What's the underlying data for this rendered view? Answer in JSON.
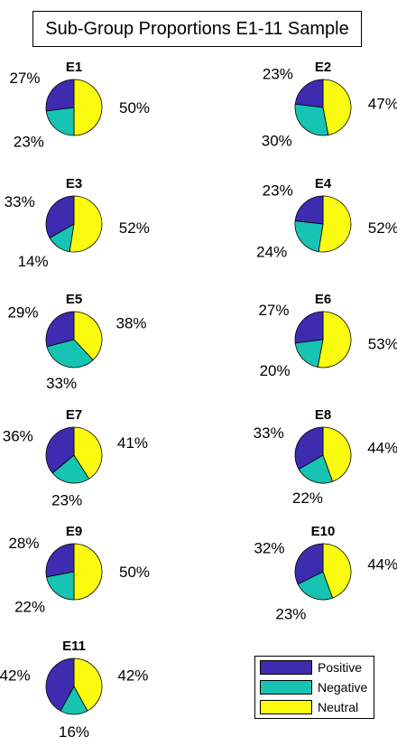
{
  "title": "Sub-Group Proportions E1-11 Sample",
  "chart_data": {
    "type": "pie",
    "title": "Sub-Group Proportions E1-11 Sample",
    "series_names": [
      "Positive",
      "Negative",
      "Neutral"
    ],
    "colors": {
      "Positive": "#3d2bb0",
      "Negative": "#17c3b2",
      "Neutral": "#fbfb10"
    },
    "legend": {
      "placement": "bottom-right",
      "entries": [
        "Positive",
        "Negative",
        "Neutral"
      ]
    },
    "pies": [
      {
        "name": "E1",
        "values": {
          "Positive": 27,
          "Negative": 23,
          "Neutral": 50
        },
        "labels": {
          "Positive": "27%",
          "Negative": "23%",
          "Neutral": "50%"
        }
      },
      {
        "name": "E2",
        "values": {
          "Positive": 23,
          "Negative": 30,
          "Neutral": 47
        },
        "labels": {
          "Positive": "23%",
          "Negative": "30%",
          "Neutral": "47%"
        }
      },
      {
        "name": "E3",
        "values": {
          "Positive": 33,
          "Negative": 14,
          "Neutral": 52
        },
        "labels": {
          "Positive": "33%",
          "Negative": "14%",
          "Neutral": "52%"
        }
      },
      {
        "name": "E4",
        "values": {
          "Positive": 23,
          "Negative": 24,
          "Neutral": 52
        },
        "labels": {
          "Positive": "23%",
          "Negative": "24%",
          "Neutral": "52%"
        }
      },
      {
        "name": "E5",
        "values": {
          "Positive": 29,
          "Negative": 33,
          "Neutral": 38
        },
        "labels": {
          "Positive": "29%",
          "Negative": "33%",
          "Neutral": "38%"
        }
      },
      {
        "name": "E6",
        "values": {
          "Positive": 27,
          "Negative": 20,
          "Neutral": 53
        },
        "labels": {
          "Positive": "27%",
          "Negative": "20%",
          "Neutral": "53%"
        }
      },
      {
        "name": "E7",
        "values": {
          "Positive": 36,
          "Negative": 23,
          "Neutral": 41
        },
        "labels": {
          "Positive": "36%",
          "Negative": "23%",
          "Neutral": "41%"
        }
      },
      {
        "name": "E8",
        "values": {
          "Positive": 33,
          "Negative": 22,
          "Neutral": 44
        },
        "labels": {
          "Positive": "33%",
          "Negative": "22%",
          "Neutral": "44%"
        }
      },
      {
        "name": "E9",
        "values": {
          "Positive": 28,
          "Negative": 22,
          "Neutral": 50
        },
        "labels": {
          "Positive": "28%",
          "Negative": "22%",
          "Neutral": "50%"
        }
      },
      {
        "name": "E10",
        "values": {
          "Positive": 32,
          "Negative": 23,
          "Neutral": 44
        },
        "labels": {
          "Positive": "32%",
          "Negative": "23%",
          "Neutral": "44%"
        }
      },
      {
        "name": "E11",
        "values": {
          "Positive": 42,
          "Negative": 16,
          "Neutral": 42
        },
        "labels": {
          "Positive": "42%",
          "Negative": "16%",
          "Neutral": "42%"
        }
      }
    ]
  }
}
